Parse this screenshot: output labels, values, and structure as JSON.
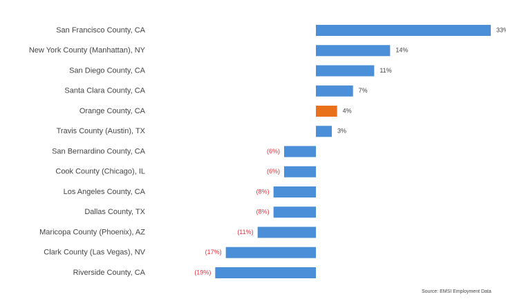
{
  "chart_data": {
    "type": "hbar",
    "categories": [
      "San Francisco County, CA",
      "New York County (Manhattan), NY",
      "San Diego County, CA",
      "Santa Clara County, CA",
      "Orange County, CA",
      "Travis County (Austin), TX",
      "San Bernardino County, CA",
      "Cook County (Chicago), IL",
      "Los Angeles County, CA",
      "Dallas County, TX",
      "Maricopa County (Phoenix), AZ",
      "Clark County (Las Vegas), NV",
      "Riverside County, CA"
    ],
    "values": [
      33,
      14,
      11,
      7,
      4,
      3,
      -6,
      -6,
      -8,
      -8,
      -11,
      -17,
      -19
    ],
    "value_labels": [
      "33%",
      "14%",
      "11%",
      "7%",
      "4%",
      "3%",
      "(6%)",
      "(6%)",
      "(8%)",
      "(8%)",
      "(11%)",
      "(17%)",
      "(19%)"
    ],
    "colors": [
      "#4a8fd8",
      "#4a8fd8",
      "#4a8fd8",
      "#4a8fd8",
      "#e8711a",
      "#4a8fd8",
      "#4a8fd8",
      "#4a8fd8",
      "#4a8fd8",
      "#4a8fd8",
      "#4a8fd8",
      "#4a8fd8",
      "#4a8fd8"
    ],
    "negative_label_color": "#e0303b",
    "source": "Source: EMSI Employment Data"
  }
}
